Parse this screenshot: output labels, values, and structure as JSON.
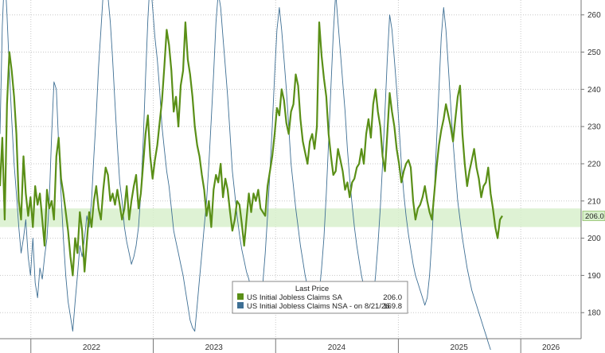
{
  "chart_data": {
    "type": "line",
    "title": "",
    "xlabel": "",
    "ylabel": "",
    "x_range": [
      "2021-10-01",
      "2026-06-30"
    ],
    "ylim": [
      173,
      264
    ],
    "y_ticks": [
      180,
      190,
      200,
      210,
      220,
      230,
      240,
      250,
      260
    ],
    "x_tick_labels": [
      {
        "label": "2022",
        "date": "2022-07-01"
      },
      {
        "label": "2023",
        "date": "2023-07-01"
      },
      {
        "label": "2024",
        "date": "2024-07-01"
      },
      {
        "label": "2025",
        "date": "2025-07-01"
      },
      {
        "label": "2026",
        "date": "2026-04-01"
      }
    ],
    "x_separators": [
      "2022-01-01",
      "2023-01-01",
      "2024-01-01",
      "2025-01-01",
      "2026-01-01"
    ],
    "grid": true,
    "band": {
      "low": 203,
      "high": 208,
      "color": "#d8f0cc"
    },
    "last_value_label": {
      "value": 206.0,
      "text": "206.0"
    },
    "legend": {
      "position": "bottom-center",
      "title": "Last Price",
      "entries": [
        {
          "name": "US Initial Jobless Claims SA",
          "value": "206.0",
          "color": "#5a8f17"
        },
        {
          "name": "US Initial Jobless Claims NSA -  on 8/21/26",
          "value": "169.8",
          "color": "#3e6f94"
        }
      ]
    },
    "series": [
      {
        "name": "US Initial Jobless Claims SA",
        "color": "#5a8f17",
        "start": "2021-10-01",
        "step_weeks": 1,
        "values": [
          214,
          227,
          205,
          236,
          250,
          245,
          238,
          228,
          210,
          205,
          222,
          212,
          206,
          211,
          203,
          214,
          209,
          212,
          205,
          198,
          213,
          208,
          210,
          205,
          222,
          227,
          216,
          212,
          207,
          202,
          195,
          190,
          200,
          196,
          207,
          202,
          191,
          199,
          207,
          203,
          210,
          214,
          208,
          205,
          213,
          219,
          217,
          210,
          212,
          209,
          213,
          209,
          205,
          208,
          214,
          205,
          210,
          214,
          217,
          208,
          212,
          220,
          228,
          233,
          222,
          216,
          221,
          225,
          231,
          237,
          246,
          256,
          252,
          245,
          234,
          238,
          230,
          241,
          245,
          258,
          248,
          244,
          238,
          230,
          225,
          222,
          217,
          213,
          206,
          210,
          203,
          213,
          217,
          215,
          220,
          211,
          216,
          213,
          207,
          202,
          205,
          210,
          209,
          204,
          198,
          205,
          212,
          207,
          212,
          210,
          213,
          208,
          207,
          206,
          214,
          218,
          222,
          228,
          235,
          233,
          240,
          237,
          231,
          228,
          234,
          236,
          244,
          241,
          232,
          226,
          223,
          220,
          226,
          228,
          224,
          230,
          258,
          249,
          243,
          238,
          228,
          222,
          217,
          218,
          224,
          221,
          218,
          213,
          215,
          211,
          215,
          216,
          219,
          220,
          224,
          220,
          228,
          232,
          227,
          236,
          240,
          234,
          230,
          222,
          218,
          228,
          239,
          234,
          230,
          224,
          220,
          215,
          218,
          220,
          221,
          219,
          210,
          205,
          208,
          209,
          211,
          214,
          210,
          207,
          205,
          212,
          219,
          225,
          229,
          232,
          236,
          233,
          230,
          226,
          232,
          238,
          241,
          228,
          220,
          214,
          218,
          221,
          224,
          219,
          216,
          211,
          214,
          215,
          219,
          212,
          208,
          203,
          200,
          205,
          206
        ]
      },
      {
        "name": "US Initial Jobless Claims NSA -  on 8/21/26",
        "color": "#3e6f94",
        "start": "2021-10-01",
        "step_weeks": 1,
        "values": [
          228,
          257,
          272,
          260,
          245,
          232,
          220,
          212,
          203,
          196,
          200,
          205,
          195,
          190,
          200,
          188,
          184,
          192,
          189,
          195,
          200,
          210,
          228,
          242,
          240,
          225,
          212,
          200,
          190,
          183,
          179,
          175,
          183,
          190,
          198,
          195,
          200,
          206,
          203,
          210,
          222,
          233,
          246,
          256,
          266,
          272,
          265,
          258,
          248,
          236,
          225,
          215,
          210,
          203,
          199,
          196,
          193,
          195,
          198,
          203,
          212,
          226,
          243,
          259,
          270,
          262,
          254,
          248,
          240,
          230,
          224,
          218,
          214,
          208,
          202,
          199,
          196,
          193,
          190,
          186,
          182,
          178,
          176,
          175,
          182,
          189,
          196,
          203,
          210,
          220,
          232,
          244,
          258,
          266,
          262,
          254,
          246,
          238,
          228,
          218,
          212,
          206,
          201,
          197,
          194,
          191,
          189,
          186,
          184,
          182,
          180,
          184,
          188,
          196,
          206,
          218,
          230,
          244,
          256,
          262,
          256,
          248,
          240,
          230,
          220,
          214,
          208,
          203,
          198,
          194,
          190,
          187,
          185,
          183,
          182,
          181,
          185,
          192,
          200,
          212,
          226,
          241,
          255,
          266,
          258,
          250,
          242,
          234,
          224,
          216,
          209,
          203,
          198,
          194,
          190,
          187,
          184,
          182,
          181,
          184,
          190,
          198,
          208,
          220,
          234,
          248,
          260,
          256,
          248,
          240,
          230,
          220,
          212,
          206,
          201,
          197,
          193,
          190,
          188,
          186,
          184,
          182,
          184,
          190,
          200,
          212,
          226,
          240,
          254,
          262,
          256,
          246,
          236,
          226,
          218,
          210,
          205,
          200,
          196,
          192,
          189,
          186,
          184,
          182,
          180,
          178,
          176,
          174,
          172,
          170
        ]
      }
    ]
  }
}
